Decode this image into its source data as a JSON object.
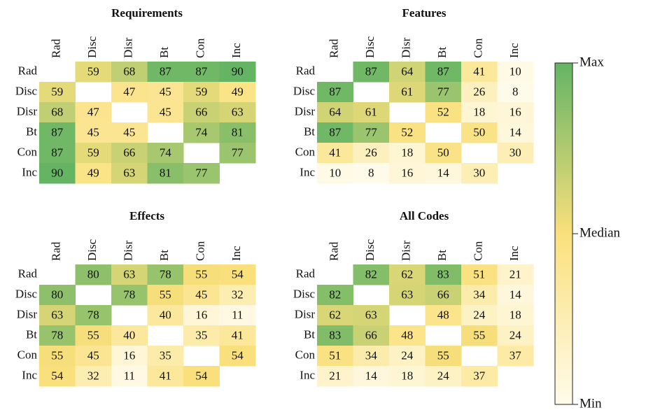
{
  "chart_data": [
    {
      "type": "heatmap",
      "title": "Requirements",
      "x": [
        "Rad",
        "Disc",
        "Disr",
        "Bt",
        "Con",
        "Inc"
      ],
      "y": [
        "Rad",
        "Disc",
        "Disr",
        "Bt",
        "Con",
        "Inc"
      ],
      "values": [
        [
          null,
          59,
          68,
          87,
          87,
          90
        ],
        [
          59,
          null,
          47,
          45,
          59,
          49
        ],
        [
          68,
          47,
          null,
          45,
          66,
          63
        ],
        [
          87,
          45,
          45,
          null,
          74,
          81
        ],
        [
          87,
          59,
          66,
          74,
          null,
          77
        ],
        [
          90,
          49,
          63,
          81,
          77,
          null
        ]
      ]
    },
    {
      "type": "heatmap",
      "title": "Features",
      "x": [
        "Rad",
        "Disc",
        "Disr",
        "Bt",
        "Con",
        "Inc"
      ],
      "y": [
        "Rad",
        "Disc",
        "Disr",
        "Bt",
        "Con",
        "Inc"
      ],
      "values": [
        [
          null,
          87,
          64,
          87,
          41,
          10
        ],
        [
          87,
          null,
          61,
          77,
          26,
          8
        ],
        [
          64,
          61,
          null,
          52,
          18,
          16
        ],
        [
          87,
          77,
          52,
          null,
          50,
          14
        ],
        [
          41,
          26,
          18,
          50,
          null,
          30
        ],
        [
          10,
          8,
          16,
          14,
          30,
          null
        ]
      ]
    },
    {
      "type": "heatmap",
      "title": "Effects",
      "x": [
        "Rad",
        "Disc",
        "Disr",
        "Bt",
        "Con",
        "Inc"
      ],
      "y": [
        "Rad",
        "Disc",
        "Disr",
        "Bt",
        "Con",
        "Inc"
      ],
      "values": [
        [
          null,
          80,
          63,
          78,
          55,
          54
        ],
        [
          80,
          null,
          78,
          55,
          45,
          32
        ],
        [
          63,
          78,
          null,
          40,
          16,
          11
        ],
        [
          78,
          55,
          40,
          null,
          35,
          41
        ],
        [
          55,
          45,
          16,
          35,
          null,
          54
        ],
        [
          54,
          32,
          11,
          41,
          54,
          null
        ]
      ]
    },
    {
      "type": "heatmap",
      "title": "All Codes",
      "x": [
        "Rad",
        "Disc",
        "Disr",
        "Bt",
        "Con",
        "Inc"
      ],
      "y": [
        "Rad",
        "Disc",
        "Disr",
        "Bt",
        "Con",
        "Inc"
      ],
      "values": [
        [
          null,
          82,
          62,
          83,
          51,
          21
        ],
        [
          82,
          null,
          63,
          66,
          34,
          14
        ],
        [
          62,
          63,
          null,
          48,
          24,
          18
        ],
        [
          83,
          66,
          48,
          null,
          55,
          24
        ],
        [
          51,
          34,
          24,
          55,
          null,
          37
        ],
        [
          21,
          14,
          18,
          24,
          37,
          null
        ]
      ]
    }
  ],
  "colorbar": {
    "max_label": "Max",
    "median_label": "Median",
    "min_label": "Min",
    "colors": [
      "#fffbea",
      "#fae07c",
      "#64b464"
    ]
  }
}
